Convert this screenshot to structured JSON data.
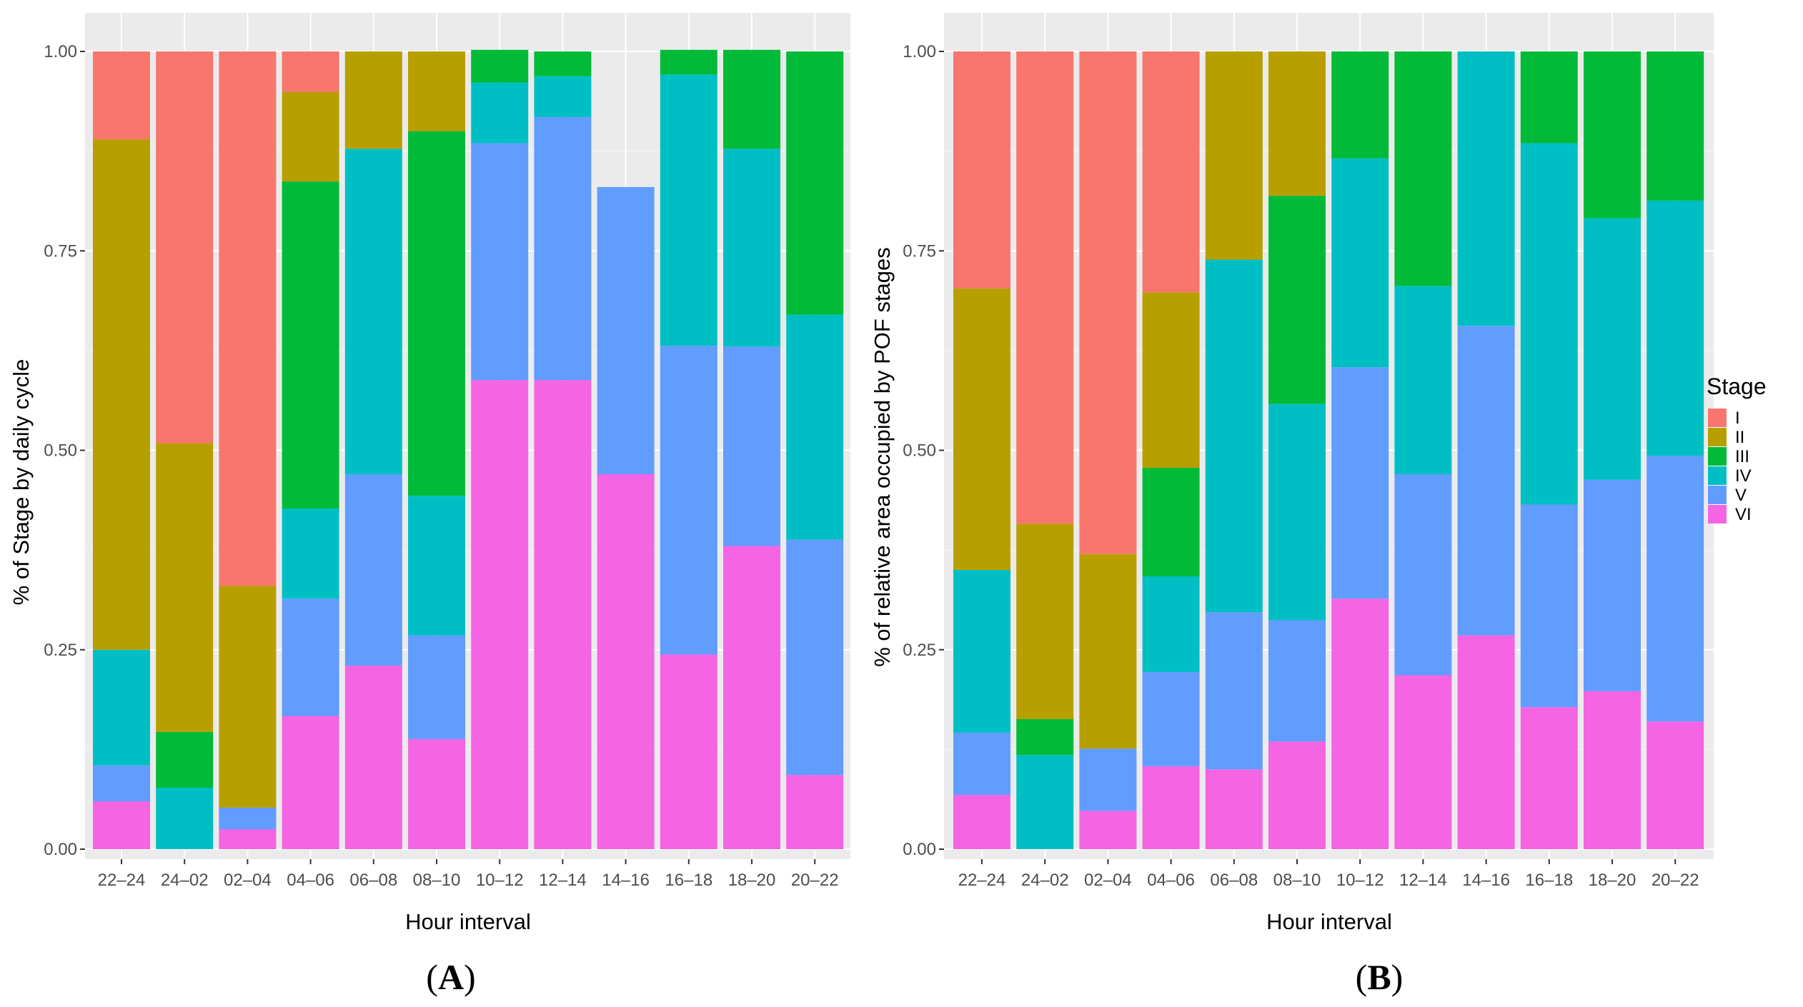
{
  "legend": {
    "title": "Stage",
    "items": [
      {
        "label": "I",
        "color": "#F8766D"
      },
      {
        "label": "II",
        "color": "#B79F00"
      },
      {
        "label": "III",
        "color": "#00BA38"
      },
      {
        "label": "IV",
        "color": "#00BFC4"
      },
      {
        "label": "V",
        "color": "#619CFF"
      },
      {
        "label": "VI",
        "color": "#F564E3"
      }
    ]
  },
  "chart_data": [
    {
      "type": "bar",
      "stacked": true,
      "panel_label": "A",
      "xlabel": "Hour interval",
      "ylabel": "% of Stage by daily cycle",
      "ylim": [
        0,
        1
      ],
      "yticks": [
        "0.00",
        "0.25",
        "0.50",
        "0.75",
        "1.00"
      ],
      "categories": [
        "22–24",
        "24–02",
        "02–04",
        "04–06",
        "06–08",
        "08–10",
        "10–12",
        "12–14",
        "14–16",
        "16–18",
        "18–20",
        "20–22"
      ],
      "series": [
        {
          "name": "VI",
          "values": [
            0.06,
            0.0,
            0.025,
            0.167,
            0.23,
            0.138,
            0.588,
            0.588,
            0.47,
            0.244,
            0.38,
            0.093
          ]
        },
        {
          "name": "V",
          "values": [
            0.045,
            0.0,
            0.027,
            0.147,
            0.24,
            0.13,
            0.297,
            0.33,
            0.36,
            0.387,
            0.25,
            0.295
          ]
        },
        {
          "name": "IV",
          "values": [
            0.145,
            0.077,
            0.0,
            0.113,
            0.408,
            0.175,
            0.076,
            0.051,
            0.0,
            0.34,
            0.248,
            0.282
          ]
        },
        {
          "name": "III",
          "values": [
            0.0,
            0.07,
            0.0,
            0.41,
            0.0,
            0.457,
            0.041,
            0.031,
            0.0,
            0.031,
            0.124,
            0.33
          ]
        },
        {
          "name": "II",
          "values": [
            0.64,
            0.362,
            0.278,
            0.112,
            0.122,
            0.1,
            0.0,
            0.0,
            0.0,
            0.0,
            0.0,
            0.0
          ]
        },
        {
          "name": "I",
          "values": [
            0.11,
            0.491,
            0.67,
            0.051,
            0.0,
            0.0,
            0.0,
            0.0,
            0.0,
            0.0,
            0.0,
            0.0
          ]
        }
      ]
    },
    {
      "type": "bar",
      "stacked": true,
      "panel_label": "B",
      "xlabel": "Hour interval",
      "ylabel": "% of relative area occupied by POF stages",
      "ylim": [
        0,
        1
      ],
      "yticks": [
        "0.00",
        "0.25",
        "0.50",
        "0.75",
        "1.00"
      ],
      "categories": [
        "22–24",
        "24–02",
        "02–04",
        "04–06",
        "06–08",
        "08–10",
        "10–12",
        "12–14",
        "14–16",
        "16–18",
        "18–20",
        "20–22"
      ],
      "series": [
        {
          "name": "VI",
          "values": [
            0.068,
            0.0,
            0.048,
            0.104,
            0.1,
            0.135,
            0.314,
            0.218,
            0.268,
            0.178,
            0.198,
            0.16
          ]
        },
        {
          "name": "V",
          "values": [
            0.078,
            0.0,
            0.078,
            0.118,
            0.197,
            0.152,
            0.29,
            0.252,
            0.388,
            0.254,
            0.265,
            0.333
          ]
        },
        {
          "name": "IV",
          "values": [
            0.204,
            0.118,
            0.0,
            0.12,
            0.442,
            0.271,
            0.262,
            0.236,
            0.344,
            0.453,
            0.328,
            0.32
          ]
        },
        {
          "name": "III",
          "values": [
            0.0,
            0.045,
            0.0,
            0.136,
            0.0,
            0.261,
            0.134,
            0.294,
            0.0,
            0.115,
            0.209,
            0.187
          ]
        },
        {
          "name": "II",
          "values": [
            0.353,
            0.245,
            0.244,
            0.22,
            0.261,
            0.181,
            0.0,
            0.0,
            0.0,
            0.0,
            0.0,
            0.0
          ]
        },
        {
          "name": "I",
          "values": [
            0.297,
            0.592,
            0.63,
            0.302,
            0.0,
            0.0,
            0.0,
            0.0,
            0.0,
            0.0,
            0.0,
            0.0
          ]
        }
      ]
    }
  ]
}
